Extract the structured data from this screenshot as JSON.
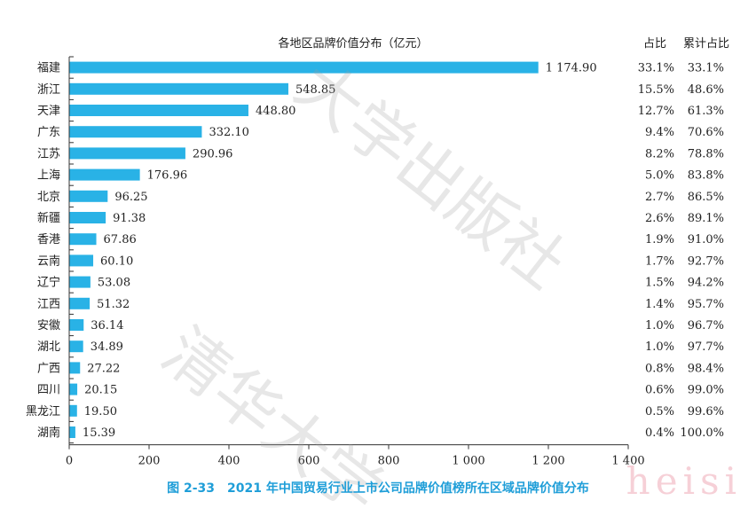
{
  "chart_data": {
    "type": "bar",
    "orientation": "horizontal",
    "title": "各地区品牌价值分布（亿元）",
    "categories": [
      "福建",
      "浙江",
      "天津",
      "广东",
      "江苏",
      "上海",
      "北京",
      "新疆",
      "香港",
      "云南",
      "辽宁",
      "江西",
      "安徽",
      "湖北",
      "广西",
      "四川",
      "黑龙江",
      "湖南"
    ],
    "values": [
      1174.9,
      548.85,
      448.8,
      332.1,
      290.96,
      176.96,
      96.25,
      91.38,
      67.86,
      60.1,
      53.08,
      51.32,
      36.14,
      34.89,
      27.22,
      20.15,
      19.5,
      15.39
    ],
    "value_labels": [
      "1 174.90",
      "548.85",
      "448.80",
      "332.10",
      "290.96",
      "176.96",
      "96.25",
      "91.38",
      "67.86",
      "60.10",
      "53.08",
      "51.32",
      "36.14",
      "34.89",
      "27.22",
      "20.15",
      "19.50",
      "15.39"
    ],
    "xlim": [
      0,
      1400
    ],
    "xticks": [
      0,
      200,
      400,
      600,
      800,
      1000,
      1200,
      1400
    ],
    "xtick_labels": [
      "0",
      "200",
      "400",
      "600",
      "800",
      "1 000",
      "1 200",
      "1 400"
    ],
    "share_header": "占比",
    "cumulative_header": "累计占比",
    "share": [
      "33.1%",
      "15.5%",
      "12.7%",
      "9.4%",
      "8.2%",
      "5.0%",
      "2.7%",
      "2.6%",
      "1.9%",
      "1.7%",
      "1.5%",
      "1.4%",
      "1.0%",
      "1.0%",
      "0.8%",
      "0.6%",
      "0.5%",
      "0.4%"
    ],
    "cumulative": [
      "33.1%",
      "48.6%",
      "61.3%",
      "70.6%",
      "78.8%",
      "83.8%",
      "86.5%",
      "89.1%",
      "91.0%",
      "92.7%",
      "94.2%",
      "95.7%",
      "96.7%",
      "97.7%",
      "98.4%",
      "99.0%",
      "99.6%",
      "100.0%"
    ],
    "bar_color": "#29b2e6",
    "grid": false
  },
  "caption": "图 2-33　2021 年中国贸易行业上市公司品牌价值榜所在区域品牌价值分布",
  "caption_color": "#1f9ed8",
  "watermark_publisher": "大学出版社",
  "watermark_name": "清华大学",
  "watermark_heisi": "heisi"
}
